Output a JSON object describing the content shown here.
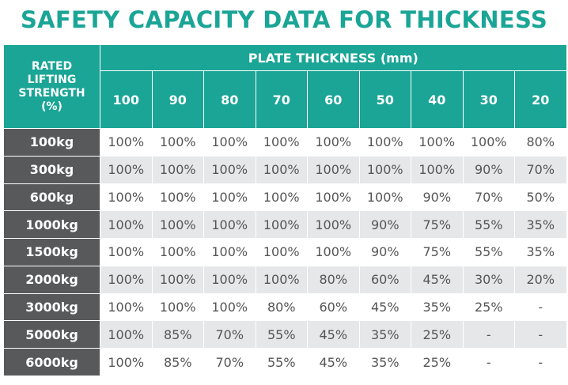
{
  "title": "SAFETY CAPACITY DATA FOR THICKNESS",
  "table": {
    "corner_header_lines": [
      "RATED",
      "LIFTING",
      "STRENGTH",
      "(%)"
    ],
    "group_header": "PLATE THICKNESS (mm)",
    "columns": [
      "100",
      "90",
      "80",
      "70",
      "60",
      "50",
      "40",
      "30",
      "20"
    ],
    "rows": [
      {
        "label": "100kg",
        "values": [
          "100%",
          "100%",
          "100%",
          "100%",
          "100%",
          "100%",
          "100%",
          "100%",
          "80%"
        ]
      },
      {
        "label": "300kg",
        "values": [
          "100%",
          "100%",
          "100%",
          "100%",
          "100%",
          "100%",
          "100%",
          "90%",
          "70%"
        ]
      },
      {
        "label": "600kg",
        "values": [
          "100%",
          "100%",
          "100%",
          "100%",
          "100%",
          "100%",
          "90%",
          "70%",
          "50%"
        ]
      },
      {
        "label": "1000kg",
        "values": [
          "100%",
          "100%",
          "100%",
          "100%",
          "100%",
          "90%",
          "75%",
          "55%",
          "35%"
        ]
      },
      {
        "label": "1500kg",
        "values": [
          "100%",
          "100%",
          "100%",
          "100%",
          "100%",
          "90%",
          "75%",
          "55%",
          "35%"
        ]
      },
      {
        "label": "2000kg",
        "values": [
          "100%",
          "100%",
          "100%",
          "100%",
          "80%",
          "60%",
          "45%",
          "30%",
          "20%"
        ]
      },
      {
        "label": "3000kg",
        "values": [
          "100%",
          "100%",
          "100%",
          "80%",
          "60%",
          "45%",
          "35%",
          "25%",
          "-"
        ]
      },
      {
        "label": "5000kg",
        "values": [
          "100%",
          "85%",
          "70%",
          "55%",
          "45%",
          "35%",
          "25%",
          "-",
          "-"
        ]
      },
      {
        "label": "6000kg",
        "values": [
          "100%",
          "85%",
          "70%",
          "55%",
          "45%",
          "35%",
          "25%",
          "-",
          "-"
        ]
      }
    ]
  },
  "colors": {
    "title": "#1aa596",
    "header_bg": "#1aa596",
    "row_header_bg": "#58595b",
    "alt_row_bg": "#e6e7e8"
  }
}
